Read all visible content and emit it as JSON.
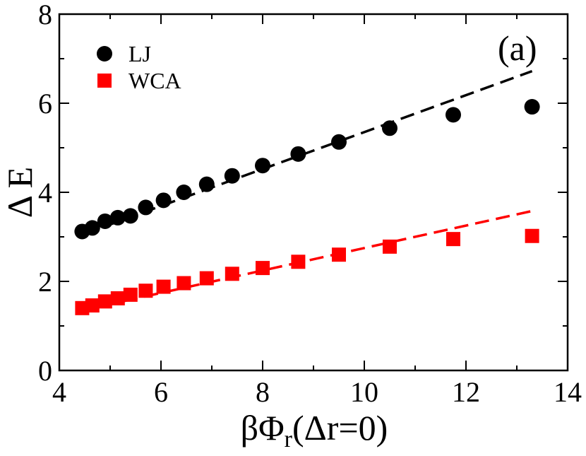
{
  "chart_data": {
    "type": "scatter",
    "panel_label": "(a)",
    "xlabel": {
      "main": "βΦ",
      "sub": "r",
      "rest": "(Δr=0)"
    },
    "ylabel": "Δ E",
    "xlim": [
      4,
      14
    ],
    "ylim": [
      0,
      8
    ],
    "xticks": [
      4,
      6,
      8,
      10,
      12,
      14
    ],
    "yticks": [
      0,
      2,
      4,
      6,
      8
    ],
    "legend_position": "top-left",
    "series": [
      {
        "name": "LJ",
        "marker": "circle",
        "color": "#000000",
        "x": [
          4.45,
          4.65,
          4.9,
          5.15,
          5.4,
          5.7,
          6.05,
          6.45,
          6.9,
          7.4,
          8.0,
          8.7,
          9.5,
          10.5,
          11.75,
          13.3
        ],
        "y": [
          3.12,
          3.2,
          3.35,
          3.43,
          3.47,
          3.66,
          3.82,
          4.0,
          4.18,
          4.37,
          4.6,
          4.86,
          5.13,
          5.44,
          5.74,
          5.92
        ],
        "fit": {
          "x": [
            4.45,
            13.3
          ],
          "y": [
            3.05,
            6.72
          ]
        }
      },
      {
        "name": "WCA",
        "marker": "square",
        "color": "#ff0000",
        "x": [
          4.45,
          4.65,
          4.9,
          5.15,
          5.4,
          5.7,
          6.05,
          6.45,
          6.9,
          7.4,
          8.0,
          8.7,
          9.5,
          10.5,
          11.75,
          13.3
        ],
        "y": [
          1.4,
          1.46,
          1.55,
          1.62,
          1.7,
          1.79,
          1.88,
          1.96,
          2.07,
          2.17,
          2.3,
          2.44,
          2.6,
          2.78,
          2.95,
          3.02
        ],
        "fit": {
          "x": [
            4.45,
            13.3
          ],
          "y": [
            1.35,
            3.58
          ]
        }
      }
    ]
  }
}
